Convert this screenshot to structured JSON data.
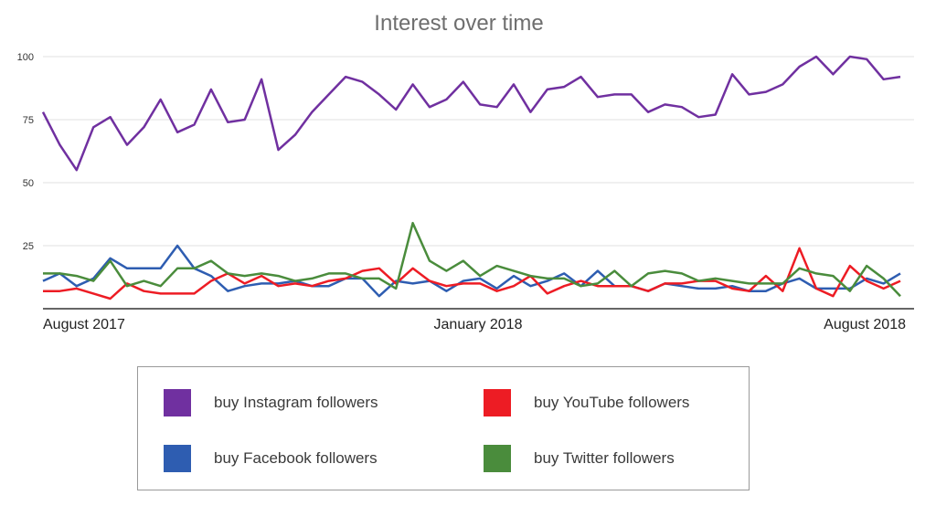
{
  "chart_data": {
    "type": "line",
    "title": "Interest over time",
    "y_ticks": [
      "100",
      "75",
      "50",
      "25"
    ],
    "y_tick_values": [
      100,
      75,
      50,
      25
    ],
    "ylim": [
      0,
      100
    ],
    "grid": true,
    "x_labels": [
      "August 2017",
      "January 2018",
      "August 2018"
    ],
    "legend_position": "bottom",
    "series": [
      {
        "name": "buy Instagram followers",
        "color": "#7030a0",
        "values": [
          78,
          65,
          55,
          72,
          76,
          65,
          72,
          83,
          70,
          73,
          87,
          74,
          75,
          91,
          63,
          69,
          78,
          85,
          92,
          90,
          85,
          79,
          89,
          80,
          83,
          90,
          81,
          80,
          89,
          78,
          87,
          88,
          92,
          84,
          85,
          85,
          78,
          81,
          80,
          76,
          77,
          93,
          85,
          86,
          89,
          96,
          100,
          93,
          100,
          99,
          91,
          92
        ]
      },
      {
        "name": "buy YouTube followers",
        "color": "#ed1c24",
        "values": [
          7,
          7,
          8,
          6,
          4,
          10,
          7,
          6,
          6,
          6,
          11,
          14,
          10,
          13,
          9,
          10,
          9,
          11,
          12,
          15,
          16,
          10,
          16,
          11,
          9,
          10,
          10,
          7,
          9,
          13,
          6,
          9,
          11,
          9,
          9,
          9,
          7,
          10,
          10,
          11,
          11,
          8,
          7,
          13,
          7,
          24,
          8,
          5,
          17,
          11,
          8,
          11
        ]
      },
      {
        "name": "buy Facebook followers",
        "color": "#2e5db1",
        "values": [
          11,
          14,
          9,
          12,
          20,
          16,
          16,
          16,
          25,
          16,
          13,
          7,
          9,
          10,
          10,
          11,
          9,
          9,
          12,
          12,
          5,
          11,
          10,
          11,
          7,
          11,
          12,
          8,
          13,
          9,
          11,
          14,
          9,
          15,
          9,
          9,
          7,
          10,
          9,
          8,
          8,
          9,
          7,
          7,
          10,
          12,
          8,
          8,
          8,
          12,
          10,
          14
        ]
      },
      {
        "name": "buy Twitter followers",
        "color": "#4a8c3c",
        "values": [
          14,
          14,
          13,
          11,
          19,
          9,
          11,
          9,
          16,
          16,
          19,
          14,
          13,
          14,
          13,
          11,
          12,
          14,
          14,
          12,
          12,
          8,
          34,
          19,
          15,
          19,
          13,
          17,
          15,
          13,
          12,
          12,
          9,
          10,
          15,
          9,
          14,
          15,
          14,
          11,
          12,
          11,
          10,
          10,
          10,
          16,
          14,
          13,
          7,
          17,
          12,
          5
        ]
      }
    ]
  }
}
